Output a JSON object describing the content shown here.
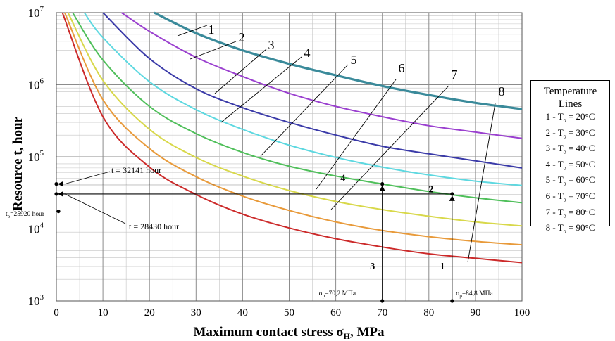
{
  "chart_data": {
    "type": "line",
    "xlabel": "Maximum contact stress σ",
    "xlabel_sub": "H",
    "xlabel_unit": ", MPa",
    "ylabel": "Resource t, hour",
    "xlim": [
      0,
      100
    ],
    "ylim": [
      1000,
      10000000
    ],
    "y_scale": "log",
    "grid": true,
    "x_ticks": [
      "0",
      "10",
      "20",
      "30",
      "40",
      "50",
      "60",
      "70",
      "80",
      "90",
      "100"
    ],
    "y_ticks": [
      {
        "base": "10",
        "exp": "3",
        "value": 1000
      },
      {
        "base": "10",
        "exp": "4",
        "value": 10000
      },
      {
        "base": "10",
        "exp": "5",
        "value": 100000
      },
      {
        "base": "10",
        "exp": "6",
        "value": 1000000
      },
      {
        "base": "10",
        "exp": "7",
        "value": 10000000
      }
    ],
    "series": [
      {
        "label": "1",
        "color": "#3a8a9a",
        "x": [
          21,
          30,
          40,
          50,
          60,
          70,
          80,
          90,
          100
        ],
        "y": [
          10000000,
          5200000,
          3000000,
          1950000,
          1350000,
          960000,
          720000,
          560000,
          460000
        ]
      },
      {
        "label": "2",
        "color": "#9a3fcf",
        "x": [
          14,
          20,
          30,
          40,
          50,
          60,
          70,
          80,
          90,
          100
        ],
        "y": [
          10000000,
          5500000,
          2400000,
          1300000,
          760000,
          500000,
          360000,
          270000,
          220000,
          180000
        ]
      },
      {
        "label": "3",
        "color": "#3a3aa8",
        "x": [
          10,
          20,
          30,
          40,
          50,
          60,
          70,
          80,
          90,
          100
        ],
        "y": [
          10000000,
          2300000,
          880000,
          480000,
          300000,
          200000,
          140000,
          110000,
          88000,
          70000
        ]
      },
      {
        "label": "4",
        "color": "#5dd8e0",
        "x": [
          6,
          10,
          20,
          30,
          40,
          50,
          60,
          70,
          80,
          90,
          100
        ],
        "y": [
          10000000,
          4500000,
          1100000,
          450000,
          240000,
          145000,
          98000,
          72000,
          56000,
          46000,
          40000
        ]
      },
      {
        "label": "5",
        "color": "#4fbf5a",
        "x": [
          3.5,
          10,
          20,
          30,
          40,
          50,
          60,
          70,
          80,
          90,
          100
        ],
        "y": [
          10000000,
          2200000,
          500000,
          210000,
          115000,
          74000,
          54000,
          42000,
          33000,
          27000,
          23000
        ]
      },
      {
        "label": "6",
        "color": "#d8d84a",
        "x": [
          2.5,
          10,
          20,
          30,
          40,
          50,
          60,
          70,
          80,
          90,
          100
        ],
        "y": [
          10000000,
          1150000,
          240000,
          98000,
          54000,
          34000,
          24000,
          18500,
          15000,
          12500,
          11000
        ]
      },
      {
        "label": "7",
        "color": "#e89a3a",
        "x": [
          1.8,
          10,
          20,
          30,
          40,
          50,
          60,
          70,
          80,
          90,
          100
        ],
        "y": [
          10000000,
          620000,
          130000,
          53000,
          28500,
          18000,
          12500,
          9500,
          7800,
          6700,
          6000
        ]
      },
      {
        "label": "8",
        "color": "#cc2a2a",
        "x": [
          1.3,
          10,
          20,
          30,
          40,
          50,
          60,
          70,
          80,
          90,
          100
        ],
        "y": [
          10000000,
          360000,
          72000,
          30000,
          16000,
          10300,
          7300,
          5600,
          4500,
          3900,
          3400
        ]
      }
    ],
    "annotations": {
      "t_upper": "t = 32141 hour",
      "t_lower": "t = 28430 hour",
      "t_p": "t",
      "t_p_sub": "p",
      "t_p_value": "=25920 hour",
      "sigma_70": "σ",
      "sigma_70_sub": "p",
      "sigma_70_value": "=70,2 МПа",
      "sigma_85": "σ",
      "sigma_85_sub": "p",
      "sigma_85_value": "=84,8 МПа",
      "step_1": "1",
      "step_2": "2",
      "step_3": "3",
      "step_4": "4"
    },
    "legend_title": "Temperature Lines",
    "legend": [
      {
        "num": "1",
        "sym": "T",
        "sub": "o",
        "val": "= 20°C"
      },
      {
        "num": "2",
        "sym": "T",
        "sub": "o",
        "val": "= 30°C"
      },
      {
        "num": "3",
        "sym": "T",
        "sub": "o",
        "val": "= 40°C"
      },
      {
        "num": "4",
        "sym": "T",
        "sub": "o",
        "val": "= 50°C"
      },
      {
        "num": "5",
        "sym": "T",
        "sub": "o",
        "val": "= 60°C"
      },
      {
        "num": "6",
        "sym": "T",
        "sub": "o",
        "val": "= 70°C"
      },
      {
        "num": "7",
        "sym": "T",
        "sub": "o",
        "val": "= 80°C"
      },
      {
        "num": "8",
        "sym": "T",
        "sub": "o",
        "val": "= 90°C"
      }
    ],
    "legend_placement": "right"
  }
}
